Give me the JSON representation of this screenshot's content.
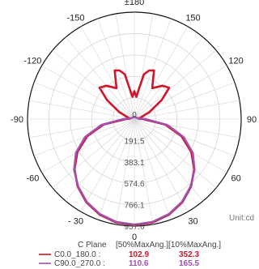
{
  "chart_data": {
    "type": "polar",
    "unit_label": "Unit:cd",
    "angle_labels": [
      {
        "deg": 180,
        "text": "±180"
      },
      {
        "deg": 150,
        "text": "150"
      },
      {
        "deg": -150,
        "text": "-150"
      },
      {
        "deg": 120,
        "text": "120"
      },
      {
        "deg": -120,
        "text": "-120"
      },
      {
        "deg": 90,
        "text": "90"
      },
      {
        "deg": -90,
        "text": "-90"
      },
      {
        "deg": 60,
        "text": "60"
      },
      {
        "deg": -60,
        "text": "-60"
      },
      {
        "deg": 30,
        "text": "30"
      },
      {
        "deg": -30,
        "text": "- 30"
      },
      {
        "deg": 0,
        "text": "0"
      }
    ],
    "radial_ticks": [
      0,
      191.5,
      383.1,
      574.6,
      766.1,
      957.6
    ],
    "radial_labels": [
      "0",
      "191.5",
      "383.1",
      "574.6",
      "766.1",
      "957.6"
    ],
    "r_max": 957.6,
    "grid": true,
    "series": [
      {
        "name": "C0.0_180.0 :",
        "color": "#d0142c",
        "half_max_angle": "102.9",
        "tenth_max_angle": "352.3",
        "points": [
          [
            0,
            950
          ],
          [
            10,
            940
          ],
          [
            20,
            910
          ],
          [
            30,
            860
          ],
          [
            40,
            790
          ],
          [
            50,
            700
          ],
          [
            60,
            590
          ],
          [
            70,
            450
          ],
          [
            80,
            280
          ],
          [
            90,
            80
          ],
          [
            95,
            40
          ],
          [
            105,
            60
          ],
          [
            115,
            150
          ],
          [
            125,
            300
          ],
          [
            132,
            420
          ],
          [
            140,
            390
          ],
          [
            150,
            320
          ],
          [
            158,
            470
          ],
          [
            163,
            455
          ],
          [
            168,
            410
          ],
          [
            175,
            200
          ],
          [
            180,
            250
          ]
        ]
      },
      {
        "name": "C90.0_270.0 :",
        "color": "#a050b0",
        "half_max_angle": "110.6",
        "tenth_max_angle": "165.5",
        "points": [
          [
            0,
            945
          ],
          [
            10,
            935
          ],
          [
            20,
            905
          ],
          [
            30,
            855
          ],
          [
            40,
            785
          ],
          [
            50,
            705
          ],
          [
            60,
            605
          ],
          [
            70,
            470
          ],
          [
            80,
            300
          ],
          [
            90,
            100
          ],
          [
            100,
            40
          ],
          [
            115,
            25
          ],
          [
            135,
            20
          ],
          [
            160,
            20
          ],
          [
            180,
            20
          ]
        ]
      }
    ],
    "legend": {
      "header": "C Plane",
      "header_cols": "[50%MaxAng.][10%MaxAng.]"
    }
  }
}
